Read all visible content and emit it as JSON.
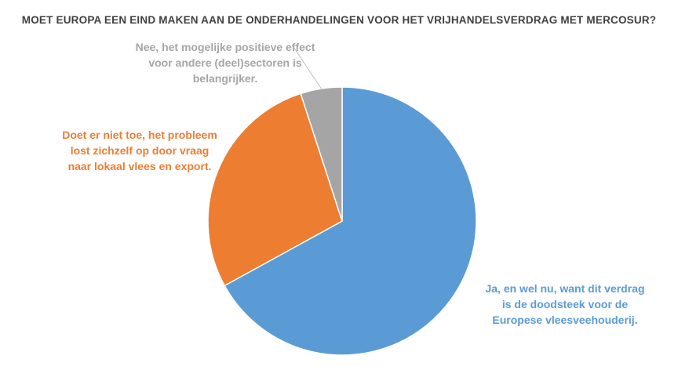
{
  "chart_data": {
    "type": "pie",
    "title": "MOET EUROPA EEN EIND MAKEN AAN DE ONDERHANDELINGEN VOOR HET VRIJHANDELSVERDRAG MET MERCOSUR?",
    "legend": "none",
    "slices": [
      {
        "label": "Ja, en wel nu, want dit verdrag is de doodsteek voor de Europese vleesveehouderij.",
        "value": 67,
        "color": "#5b9bd5"
      },
      {
        "label": "Doet er niet toe, het probleem lost zichzelf op door vraag naar lokaal vlees en export.",
        "value": 28,
        "color": "#ed7d31"
      },
      {
        "label": "Nee, het mogelijke positieve effect voor andere (deel)sectoren is belangrijker.",
        "value": 5,
        "color": "#a5a5a5"
      }
    ]
  }
}
